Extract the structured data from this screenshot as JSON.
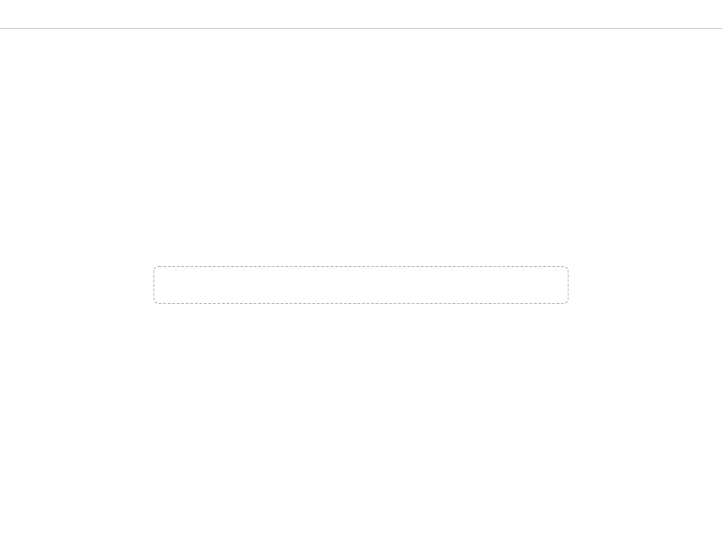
{
  "window": {
    "title": ""
  },
  "main": {
    "text": ""
  }
}
